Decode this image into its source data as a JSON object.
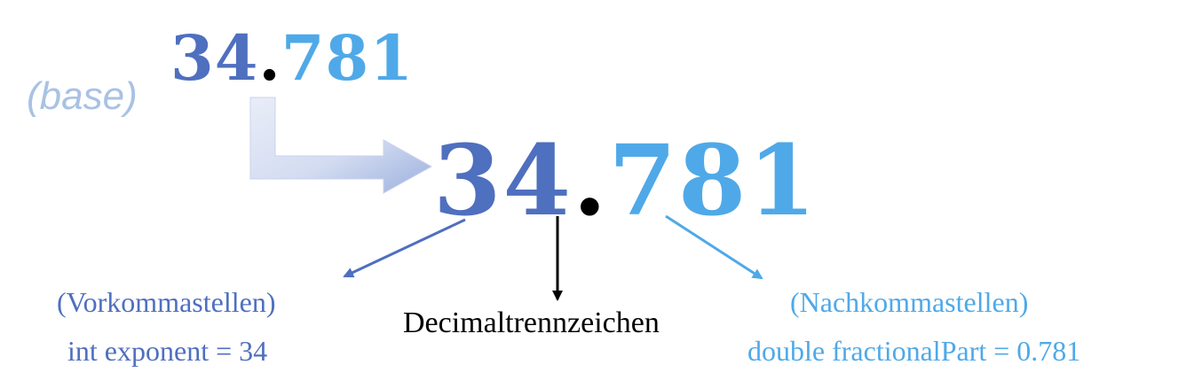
{
  "colors": {
    "integer_part": "#4f6fbf",
    "fraction_part": "#4fa9e8",
    "separator": "#000000",
    "base_label": "#a9c2e4",
    "big_arrow_light": "#e8ecf7",
    "big_arrow_dark": "#9fb0dc"
  },
  "base": {
    "label": "(base)"
  },
  "small_number": {
    "integer": "34",
    "separator": ".",
    "fraction": "781"
  },
  "large_number": {
    "integer": "34",
    "separator": ".",
    "fraction": "781"
  },
  "integer_part": {
    "caption": "(Vorkommastellen)",
    "code": "int exponent = 34"
  },
  "separator_part": {
    "caption": "Decimaltrennzeichen"
  },
  "fraction_part": {
    "caption": "(Nachkommastellen)",
    "code": "double fractionalPart = 0.781"
  }
}
